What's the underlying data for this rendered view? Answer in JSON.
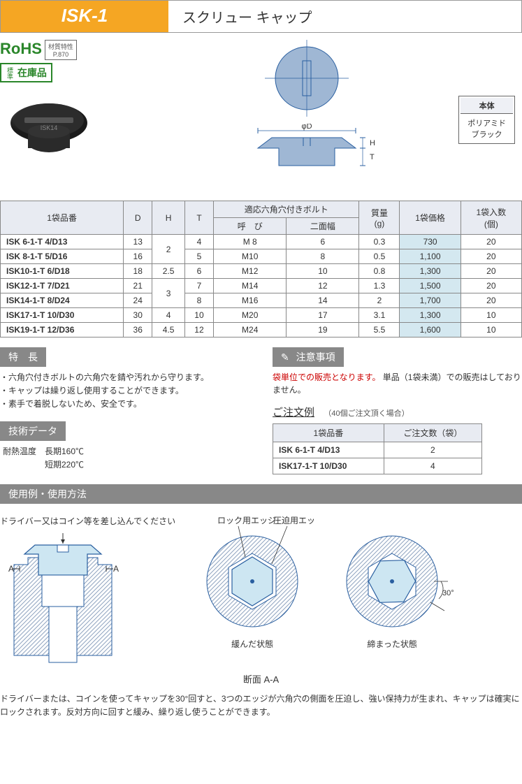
{
  "header": {
    "code": "ISK-1",
    "title": "スクリュー キャップ"
  },
  "badges": {
    "rohs": "RoHS",
    "material_label": "材質特性",
    "material_page": "P.870",
    "zaiko_prefix": "標準",
    "zaiko": "在庫品"
  },
  "spec_badge": {
    "header": "本体",
    "line1": "ポリアミド",
    "line2": "ブラック"
  },
  "dim_labels": {
    "phiD": "φD",
    "H": "H",
    "T": "T"
  },
  "table": {
    "headers": {
      "partnum": "1袋品番",
      "D": "D",
      "H": "H",
      "T": "T",
      "bolt_group": "適応六角穴付きボルト",
      "bolt_name": "呼　び",
      "bolt_width": "二面幅",
      "mass": "質量\n(g)",
      "price": "1袋価格",
      "qty": "1袋入数\n(個)"
    },
    "rows": [
      {
        "pn": "ISK 6-1-T  4/D13",
        "D": "13",
        "H": "2",
        "H_rowspan": 2,
        "T": "4",
        "bolt": "M 8",
        "width": "6",
        "mass": "0.3",
        "price": "730",
        "qty": "20"
      },
      {
        "pn": "ISK 8-1-T  5/D16",
        "D": "16",
        "T": "5",
        "bolt": "M10",
        "width": "8",
        "mass": "0.5",
        "price": "1,100",
        "qty": "20"
      },
      {
        "pn": "ISK10-1-T  6/D18",
        "D": "18",
        "H": "2.5",
        "H_rowspan": 1,
        "T": "6",
        "bolt": "M12",
        "width": "10",
        "mass": "0.8",
        "price": "1,300",
        "qty": "20"
      },
      {
        "pn": "ISK12-1-T  7/D21",
        "D": "21",
        "H": "3",
        "H_rowspan": 2,
        "T": "7",
        "bolt": "M14",
        "width": "12",
        "mass": "1.3",
        "price": "1,500",
        "qty": "20"
      },
      {
        "pn": "ISK14-1-T  8/D24",
        "D": "24",
        "T": "8",
        "bolt": "M16",
        "width": "14",
        "mass": "2",
        "price": "1,700",
        "qty": "20"
      },
      {
        "pn": "ISK17-1-T 10/D30",
        "D": "30",
        "H": "4",
        "H_rowspan": 1,
        "T": "10",
        "bolt": "M20",
        "width": "17",
        "mass": "3.1",
        "price": "1,300",
        "qty": "10"
      },
      {
        "pn": "ISK19-1-T 12/D36",
        "D": "36",
        "H": "4.5",
        "H_rowspan": 1,
        "T": "12",
        "bolt": "M24",
        "width": "19",
        "mass": "5.5",
        "price": "1,600",
        "qty": "10"
      }
    ]
  },
  "features": {
    "heading": "特　長",
    "items": [
      "六角穴付きボルトの六角穴を錆や汚れから守ります。",
      "キャップは繰り返し使用することができます。",
      "素手で着脱しないため、安全です。"
    ]
  },
  "tech": {
    "heading": "技術データ",
    "lines": [
      "耐熱温度　長期160℃",
      "　　　　　短期220℃"
    ]
  },
  "caution": {
    "heading": "注意事項",
    "red": "袋単位での販売となります。",
    "rest": "単品（1袋未満）での販売はしておりません。"
  },
  "order": {
    "heading": "ご注文例",
    "note": "（40個ご注文頂く場合）",
    "headers": {
      "pn": "1袋品番",
      "qty": "ご注文数（袋）"
    },
    "rows": [
      {
        "pn": "ISK 6-1-T  4/D13",
        "qty": "2"
      },
      {
        "pn": "ISK17-1-T 10/D30",
        "qty": "4"
      }
    ]
  },
  "usage": {
    "heading": "使用例・使用方法",
    "driver_label": "ドライバー又はコイン等を差し込んでください",
    "lock_edge": "ロック用エッジ",
    "press_edge": "圧迫用エッジ",
    "loose_state": "緩んだ状態",
    "tight_state": "締まった状態",
    "section": "断面 A-A",
    "angle": "30°",
    "mark_A": "A",
    "desc": "ドライバーまたは、コインを使ってキャップを30°回すと、3つのエッジが六角穴の側面を圧迫し、強い保持力が生まれ、キャップは確実にロックされます。反対方向に回すと緩み、繰り返し使うことができます。"
  },
  "colors": {
    "orange": "#f5a623",
    "header_th": "#e8ebf2",
    "price_bg": "#d4e8f0",
    "section_bar": "#888888",
    "hatch": "#8fa4bf",
    "cap_fill": "#cde6f2",
    "green": "#2a862a",
    "red": "#cc0000"
  }
}
